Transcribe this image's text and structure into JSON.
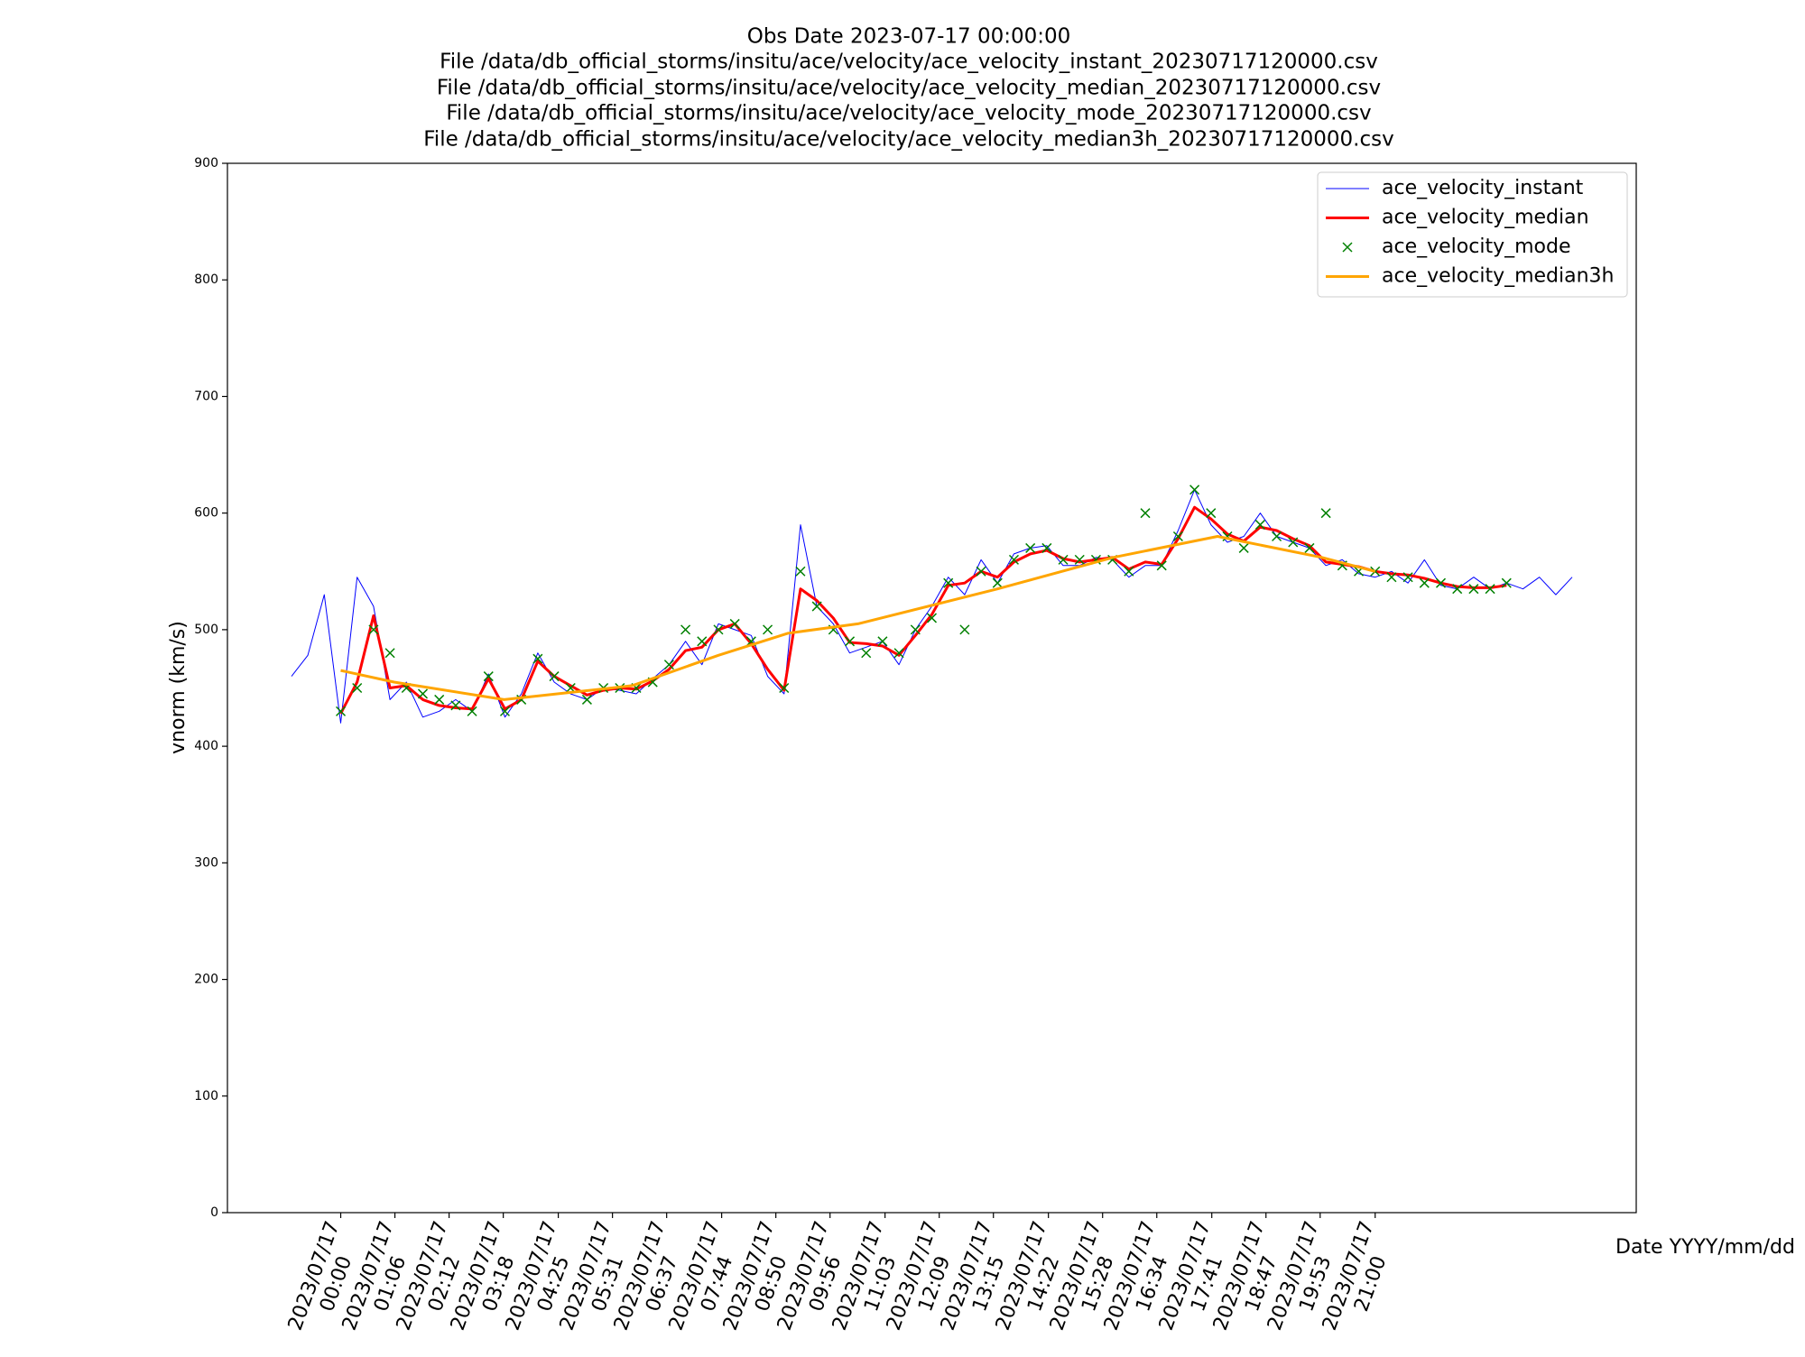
{
  "chart_data": {
    "type": "line",
    "title": "Obs Date 2023-07-17 00:00:00",
    "subtitles": [
      "File /data/db_official_storms/insitu/ace/velocity/ace_velocity_instant_20230717120000.csv",
      "File /data/db_official_storms/insitu/ace/velocity/ace_velocity_median_20230717120000.csv",
      "File /data/db_official_storms/insitu/ace/velocity/ace_velocity_mode_20230717120000.csv",
      "File /data/db_official_storms/insitu/ace/velocity/ace_velocity_median3h_20230717120000.csv"
    ],
    "x_label": "Date YYYY/mm/dd",
    "y_label": "vnorm (km/s)",
    "legend": "upper right",
    "grid": false,
    "xlim": [
      "2023/07/16 21:42",
      "2023/07/18 02:18"
    ],
    "ylim": [
      0,
      900
    ],
    "yticks": [
      0,
      100,
      200,
      300,
      400,
      500,
      600,
      700,
      800,
      900
    ],
    "xticks": [
      {
        "value": "2023/07/17 00:00",
        "label": [
          "2023/07/17",
          "00:00"
        ]
      },
      {
        "value": "2023/07/17 01:06",
        "label": [
          "2023/07/17",
          "01:06"
        ]
      },
      {
        "value": "2023/07/17 02:12",
        "label": [
          "2023/07/17",
          "02:12"
        ]
      },
      {
        "value": "2023/07/17 03:18",
        "label": [
          "2023/07/17",
          "03:18"
        ]
      },
      {
        "value": "2023/07/17 04:25",
        "label": [
          "2023/07/17",
          "04:25"
        ]
      },
      {
        "value": "2023/07/17 05:31",
        "label": [
          "2023/07/17",
          "05:31"
        ]
      },
      {
        "value": "2023/07/17 06:37",
        "label": [
          "2023/07/17",
          "06:37"
        ]
      },
      {
        "value": "2023/07/17 07:44",
        "label": [
          "2023/07/17",
          "07:44"
        ]
      },
      {
        "value": "2023/07/17 08:50",
        "label": [
          "2023/07/17",
          "08:50"
        ]
      },
      {
        "value": "2023/07/17 09:56",
        "label": [
          "2023/07/17",
          "09:56"
        ]
      },
      {
        "value": "2023/07/17 11:03",
        "label": [
          "2023/07/17",
          "11:03"
        ]
      },
      {
        "value": "2023/07/17 12:09",
        "label": [
          "2023/07/17",
          "12:09"
        ]
      },
      {
        "value": "2023/07/17 13:15",
        "label": [
          "2023/07/17",
          "13:15"
        ]
      },
      {
        "value": "2023/07/17 14:22",
        "label": [
          "2023/07/17",
          "14:22"
        ]
      },
      {
        "value": "2023/07/17 15:28",
        "label": [
          "2023/07/17",
          "15:28"
        ]
      },
      {
        "value": "2023/07/17 16:34",
        "label": [
          "2023/07/17",
          "16:34"
        ]
      },
      {
        "value": "2023/07/17 17:41",
        "label": [
          "2023/07/17",
          "17:41"
        ]
      },
      {
        "value": "2023/07/17 18:47",
        "label": [
          "2023/07/17",
          "18:47"
        ]
      },
      {
        "value": "2023/07/17 19:53",
        "label": [
          "2023/07/17",
          "19:53"
        ]
      },
      {
        "value": "2023/07/17 21:00",
        "label": [
          "2023/07/17",
          "21:00"
        ]
      }
    ],
    "x": [
      "2023/07/16 23:00",
      "2023/07/16 23:20",
      "2023/07/16 23:40",
      "2023/07/17 00:00",
      "2023/07/17 00:20",
      "2023/07/17 00:40",
      "2023/07/17 01:00",
      "2023/07/17 01:20",
      "2023/07/17 01:40",
      "2023/07/17 02:00",
      "2023/07/17 02:20",
      "2023/07/17 02:40",
      "2023/07/17 03:00",
      "2023/07/17 03:20",
      "2023/07/17 03:40",
      "2023/07/17 04:00",
      "2023/07/17 04:20",
      "2023/07/17 04:40",
      "2023/07/17 05:00",
      "2023/07/17 05:20",
      "2023/07/17 05:40",
      "2023/07/17 06:00",
      "2023/07/17 06:20",
      "2023/07/17 06:40",
      "2023/07/17 07:00",
      "2023/07/17 07:20",
      "2023/07/17 07:40",
      "2023/07/17 08:00",
      "2023/07/17 08:20",
      "2023/07/17 08:40",
      "2023/07/17 09:00",
      "2023/07/17 09:20",
      "2023/07/17 09:40",
      "2023/07/17 10:00",
      "2023/07/17 10:20",
      "2023/07/17 10:40",
      "2023/07/17 11:00",
      "2023/07/17 11:20",
      "2023/07/17 11:40",
      "2023/07/17 12:00",
      "2023/07/17 12:20",
      "2023/07/17 12:40",
      "2023/07/17 13:00",
      "2023/07/17 13:20",
      "2023/07/17 13:40",
      "2023/07/17 14:00",
      "2023/07/17 14:20",
      "2023/07/17 14:40",
      "2023/07/17 15:00",
      "2023/07/17 15:20",
      "2023/07/17 15:40",
      "2023/07/17 16:00",
      "2023/07/17 16:20",
      "2023/07/17 16:40",
      "2023/07/17 17:00",
      "2023/07/17 17:20",
      "2023/07/17 17:40",
      "2023/07/17 18:00",
      "2023/07/17 18:20",
      "2023/07/17 18:40",
      "2023/07/17 19:00",
      "2023/07/17 19:20",
      "2023/07/17 19:40",
      "2023/07/17 20:00",
      "2023/07/17 20:20",
      "2023/07/17 20:40",
      "2023/07/17 21:00",
      "2023/07/17 21:20",
      "2023/07/17 21:40",
      "2023/07/17 22:00",
      "2023/07/17 22:20",
      "2023/07/17 22:40",
      "2023/07/17 23:00",
      "2023/07/17 23:20",
      "2023/07/17 23:40",
      "2023/07/18 00:00",
      "2023/07/18 00:20",
      "2023/07/18 00:40",
      "2023/07/18 01:00"
    ],
    "series": [
      {
        "name": "ace_velocity_instant",
        "color": "#0000ff",
        "kind": "line",
        "width": 1,
        "values": [
          460,
          478,
          530,
          420,
          545,
          520,
          440,
          455,
          425,
          430,
          440,
          430,
          462,
          425,
          445,
          480,
          455,
          445,
          440,
          450,
          448,
          445,
          458,
          470,
          490,
          470,
          505,
          500,
          495,
          460,
          445,
          590,
          520,
          505,
          480,
          485,
          490,
          470,
          500,
          520,
          545,
          530,
          560,
          540,
          565,
          570,
          572,
          555,
          555,
          562,
          560,
          545,
          555,
          555,
          585,
          620,
          590,
          575,
          580,
          600,
          580,
          575,
          570,
          555,
          560,
          548,
          545,
          550,
          540,
          560,
          538,
          535,
          545,
          535,
          540,
          535,
          545,
          530,
          545
        ]
      },
      {
        "name": "ace_velocity_median",
        "color": "#ff0000",
        "kind": "line",
        "width": 3,
        "values": [
          null,
          null,
          null,
          428,
          455,
          512,
          450,
          452,
          440,
          435,
          433,
          432,
          458,
          432,
          440,
          473,
          460,
          452,
          444,
          448,
          450,
          449,
          456,
          466,
          482,
          485,
          500,
          505,
          488,
          466,
          448,
          535,
          525,
          510,
          489,
          488,
          486,
          478,
          495,
          513,
          538,
          540,
          550,
          545,
          558,
          565,
          568,
          561,
          558,
          560,
          562,
          552,
          558,
          556,
          578,
          605,
          595,
          582,
          576,
          588,
          585,
          578,
          572,
          558,
          556,
          554,
          550,
          548,
          547,
          544,
          540,
          537,
          536,
          536,
          538,
          null,
          null,
          null,
          null
        ]
      },
      {
        "name": "ace_velocity_mode",
        "color": "#008000",
        "kind": "scatter",
        "marker": "x",
        "values": [
          null,
          null,
          null,
          430,
          450,
          500,
          480,
          450,
          445,
          440,
          435,
          430,
          460,
          430,
          440,
          475,
          460,
          450,
          440,
          450,
          450,
          450,
          455,
          470,
          500,
          490,
          500,
          505,
          490,
          500,
          450,
          550,
          520,
          500,
          490,
          480,
          490,
          480,
          500,
          510,
          540,
          500,
          550,
          540,
          560,
          570,
          570,
          560,
          560,
          560,
          560,
          550,
          600,
          555,
          580,
          620,
          600,
          580,
          570,
          590,
          580,
          575,
          570,
          600,
          555,
          550,
          550,
          545,
          545,
          540,
          540,
          535,
          535,
          535,
          540,
          null,
          null,
          null,
          null
        ]
      },
      {
        "name": "ace_velocity_median3h",
        "color": "#ffa500",
        "kind": "line",
        "width": 3,
        "x": [
          "2023/07/17 00:00",
          "2023/07/17 01:05",
          "2023/07/17 03:19",
          "2023/07/17 05:30",
          "2023/07/17 05:55",
          "2023/07/17 07:40",
          "2023/07/17 09:05",
          "2023/07/17 10:30",
          "2023/07/17 13:20",
          "2023/07/17 15:41",
          "2023/07/17 17:48",
          "2023/07/17 19:55",
          "2023/07/17 21:00"
        ],
        "values": [
          465,
          455,
          440,
          450,
          452,
          478,
          497,
          505,
          535,
          562,
          580,
          562,
          550
        ]
      }
    ]
  }
}
